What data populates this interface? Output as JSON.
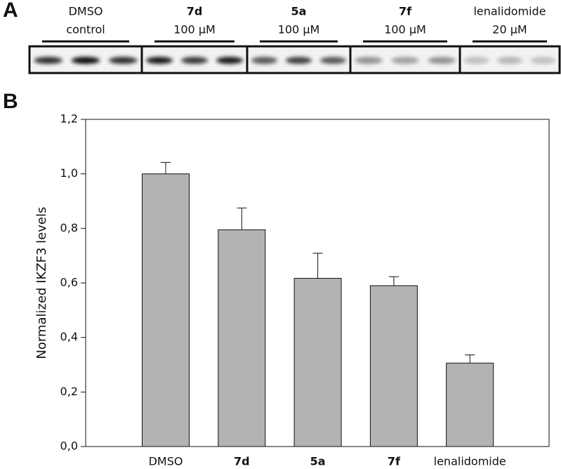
{
  "panel_labels": {
    "a": "A",
    "b": "B"
  },
  "blot": {
    "lanes": [
      {
        "name": "DMSO",
        "condition": "control"
      },
      {
        "name": "7d",
        "condition": "100 µM"
      },
      {
        "name": "5a",
        "condition": "100 µM"
      },
      {
        "name": "7f",
        "condition": "100 µM"
      },
      {
        "name": "lenalidomide",
        "condition": "20 µM"
      }
    ]
  },
  "chart_data": {
    "type": "bar",
    "categories": [
      "DMSO",
      "7d",
      "5a",
      "7f",
      "lenalidomide"
    ],
    "values": [
      1.0,
      0.795,
      0.617,
      0.59,
      0.306
    ],
    "errors": [
      0.042,
      0.08,
      0.092,
      0.033,
      0.03
    ],
    "color": "#b3b3b3",
    "ylabel": "Normalized IKZF3 levels",
    "ylim": [
      0,
      1.2
    ],
    "yticks": [
      {
        "value": 0,
        "label": "0,0"
      },
      {
        "value": 0.2,
        "label": "0,2"
      },
      {
        "value": 0.4,
        "label": "0,4"
      },
      {
        "value": 0.6,
        "label": "0,6"
      },
      {
        "value": 0.8,
        "label": "0,8"
      },
      {
        "value": 1.0,
        "label": "1,0"
      },
      {
        "value": 1.2,
        "label": "1,2"
      }
    ]
  }
}
